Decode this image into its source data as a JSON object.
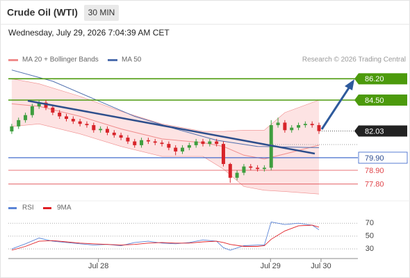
{
  "chart_data": [
    {
      "type": "candlestick",
      "title": "Crude Oil (WTI)",
      "subtitle": "30 MIN",
      "date": "Wednesday, July 29, 2026 7:04:39 AM CET",
      "source": "Research © 2026 Trading Central",
      "xlim": [
        -0.5,
        50.7
      ],
      "ylim": [
        76.68,
        86.94
      ],
      "up_color": "#3f9e3f",
      "down_color": "#d8242a",
      "open": [
        82.0,
        82.4,
        82.9,
        83.3,
        84.0,
        84.3,
        83.9,
        83.5,
        83.2,
        83.0,
        82.8,
        82.6,
        82.5,
        82.1,
        82.2,
        81.9,
        81.7,
        81.5,
        81.2,
        80.9,
        81.3,
        81.2,
        81.1,
        81.0,
        80.7,
        80.4,
        80.7,
        80.9,
        81.2,
        81.0,
        81.2,
        81.0,
        79.4,
        78.3,
        78.7,
        79.2,
        79.1,
        79.0,
        79.1,
        82.5,
        82.7,
        82.1,
        82.3,
        82.5,
        82.6,
        82.5
      ],
      "high": [
        82.6,
        83.1,
        83.5,
        84.2,
        84.5,
        84.5,
        84.1,
        83.7,
        83.4,
        83.2,
        83.0,
        82.8,
        82.7,
        82.4,
        82.4,
        82.1,
        81.9,
        81.7,
        81.4,
        81.5,
        81.5,
        81.4,
        81.3,
        81.2,
        80.9,
        80.9,
        81.1,
        81.4,
        81.4,
        81.4,
        81.4,
        81.2,
        79.5,
        78.9,
        79.4,
        79.4,
        79.3,
        79.3,
        82.9,
        83.1,
        82.9,
        82.5,
        82.7,
        82.8,
        82.8,
        82.7
      ],
      "low": [
        81.8,
        82.2,
        82.7,
        83.1,
        83.8,
        83.7,
        83.3,
        83.0,
        82.8,
        82.6,
        82.4,
        82.3,
        81.9,
        81.9,
        81.7,
        81.5,
        81.3,
        81.0,
        80.7,
        80.7,
        81.0,
        80.9,
        80.8,
        80.5,
        80.1,
        80.2,
        80.5,
        80.7,
        80.8,
        80.8,
        80.8,
        79.2,
        77.9,
        78.1,
        78.5,
        78.9,
        78.8,
        78.8,
        78.9,
        82.3,
        81.9,
        81.9,
        82.1,
        82.3,
        82.3,
        81.8
      ],
      "close": [
        82.4,
        82.9,
        83.3,
        84.0,
        84.3,
        83.9,
        83.5,
        83.2,
        83.0,
        82.8,
        82.6,
        82.5,
        82.1,
        82.2,
        81.9,
        81.7,
        81.5,
        81.2,
        80.9,
        81.3,
        81.2,
        81.1,
        81.0,
        80.7,
        80.4,
        80.7,
        80.9,
        81.2,
        81.0,
        81.2,
        81.0,
        79.4,
        78.3,
        78.7,
        79.2,
        79.1,
        79.0,
        79.1,
        82.5,
        82.7,
        82.1,
        82.3,
        82.5,
        82.6,
        82.5,
        82.03
      ],
      "bollinger": {
        "name": "MA 20 + Bollinger Bands",
        "color": "#f08c8c",
        "fill": "#fde3e3",
        "x": [
          0,
          4,
          10,
          16,
          22,
          28,
          31,
          34,
          37,
          40,
          45
        ],
        "upper": [
          86.2,
          85.8,
          84.8,
          83.6,
          82.6,
          82.0,
          82.0,
          82.1,
          82.1,
          83.5,
          84.5
        ],
        "values": [
          84.2,
          84.0,
          83.2,
          82.2,
          81.4,
          81.1,
          80.8,
          80.1,
          79.8,
          80.2,
          80.9
        ],
        "lower": [
          82.4,
          82.6,
          81.8,
          80.8,
          80.0,
          80.0,
          79.0,
          77.6,
          77.3,
          77.2,
          77.0
        ]
      },
      "ma50": {
        "name": "MA 50",
        "color": "#4f6fae",
        "x": [
          0,
          6,
          12,
          18,
          24,
          30,
          36,
          45
        ],
        "values": [
          86.9,
          86.0,
          84.6,
          83.2,
          82.2,
          81.3,
          80.8,
          80.7
        ]
      },
      "levels": [
        {
          "value": 86.2,
          "label": "86.20",
          "color": "#4c9a0c",
          "style": "box"
        },
        {
          "value": 84.5,
          "label": "84.50",
          "color": "#4c9a0c",
          "style": "box"
        },
        {
          "value": 82.03,
          "label": "82.03",
          "color": "#222222",
          "style": "current"
        },
        {
          "value": 79.9,
          "label": "79.90",
          "color": "#2f5cc8",
          "style": "outline"
        },
        {
          "value": 78.9,
          "label": "78.90",
          "color": "#e0454a",
          "style": "text"
        },
        {
          "value": 77.8,
          "label": "77.80",
          "color": "#e0454a",
          "style": "text"
        }
      ]
    },
    {
      "type": "line",
      "xlim": [
        -0.5,
        50.7
      ],
      "ylim": [
        15,
        80
      ],
      "yticks": [
        30,
        50,
        70
      ],
      "xticks": [
        {
          "value": 12.7,
          "label": "Jul 28"
        },
        {
          "value": 37.9,
          "label": "Jul 29"
        },
        {
          "value": 45.3,
          "label": "Jul 30"
        }
      ],
      "series": [
        {
          "name": "RSI",
          "color": "#5b84d6",
          "x": [
            0,
            2,
            4,
            6,
            8,
            10,
            12,
            14,
            16,
            18,
            20,
            22,
            24,
            26,
            28,
            30,
            31,
            32,
            34,
            36,
            37,
            38,
            40,
            42,
            44,
            45
          ],
          "values": [
            30,
            38,
            47,
            42,
            40,
            38,
            36,
            37,
            35,
            40,
            42,
            39,
            38,
            40,
            44,
            42,
            32,
            28,
            35,
            36,
            36,
            72,
            68,
            70,
            67,
            60
          ]
        },
        {
          "name": "9MA",
          "color": "#e01e24",
          "x": [
            0,
            2,
            4,
            6,
            8,
            10,
            12,
            14,
            16,
            18,
            20,
            22,
            24,
            26,
            28,
            30,
            31,
            32,
            34,
            36,
            37,
            38,
            40,
            42,
            44,
            45
          ],
          "values": [
            28,
            34,
            42,
            43,
            41,
            39,
            38,
            37,
            36,
            37,
            39,
            40,
            39,
            39,
            41,
            42,
            40,
            37,
            34,
            34,
            35,
            45,
            58,
            66,
            67,
            64
          ]
        }
      ]
    }
  ]
}
